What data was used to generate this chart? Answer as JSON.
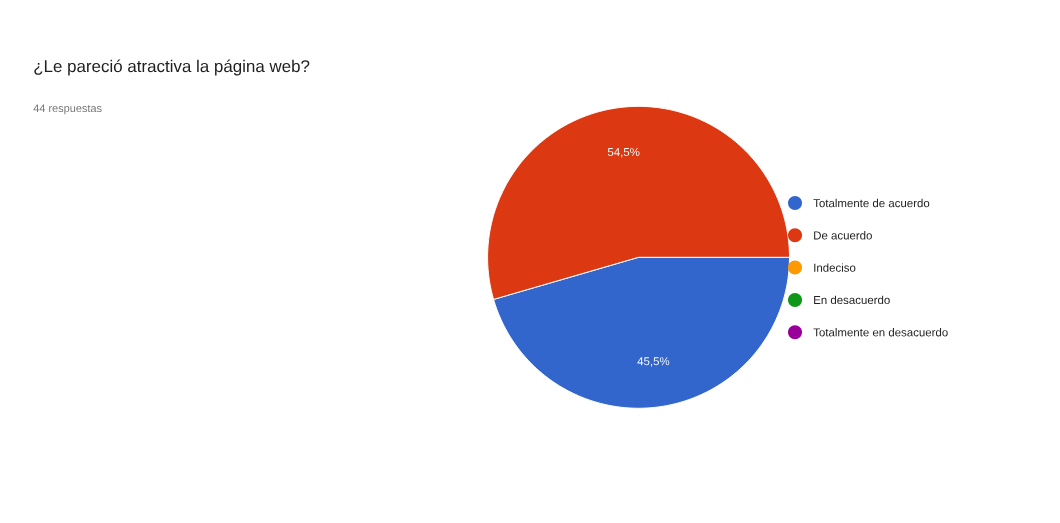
{
  "chart_data": {
    "type": "pie",
    "title": "¿Le pareció atractiva la página web?",
    "subtitle": "44 respuestas",
    "categories": [
      "Totalmente de acuerdo",
      "De acuerdo",
      "Indeciso",
      "En desacuerdo",
      "Totalmente en desacuerdo"
    ],
    "values": [
      45.5,
      54.5,
      0,
      0,
      0
    ],
    "colors": [
      "#3366cc",
      "#dc3912",
      "#ff9900",
      "#109618",
      "#990099"
    ],
    "value_labels": [
      "45,5%",
      "54,5%",
      null,
      null,
      null
    ],
    "legend": "right"
  }
}
